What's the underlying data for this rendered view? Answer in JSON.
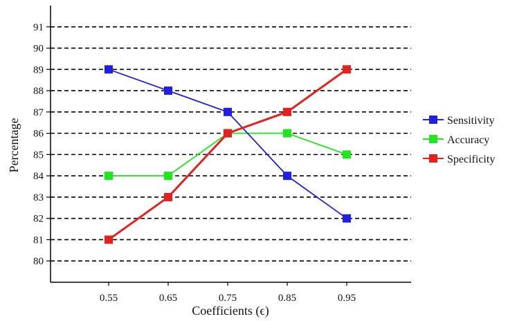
{
  "chart_data": {
    "type": "line",
    "title": "",
    "xlabel": "Coefficients (ϵ)",
    "ylabel": "Percentage",
    "categories": [
      "0.55",
      "0.65",
      "0.75",
      "0.85",
      "0.95"
    ],
    "yticks": [
      80,
      81,
      82,
      83,
      84,
      85,
      86,
      87,
      88,
      89,
      90,
      91
    ],
    "ylim": [
      79,
      92
    ],
    "grid": "horizontal dashed",
    "legend_position": "right",
    "series": [
      {
        "name": "Sensitivity",
        "color": "#1f1fe6",
        "values": [
          89,
          88,
          87,
          84,
          82
        ]
      },
      {
        "name": "Accuracy",
        "color": "#1fe61f",
        "values": [
          84,
          84,
          86,
          86,
          85
        ]
      },
      {
        "name": "Specificity",
        "color": "#e61f1f",
        "values": [
          81,
          83,
          86,
          87,
          89
        ]
      }
    ]
  }
}
